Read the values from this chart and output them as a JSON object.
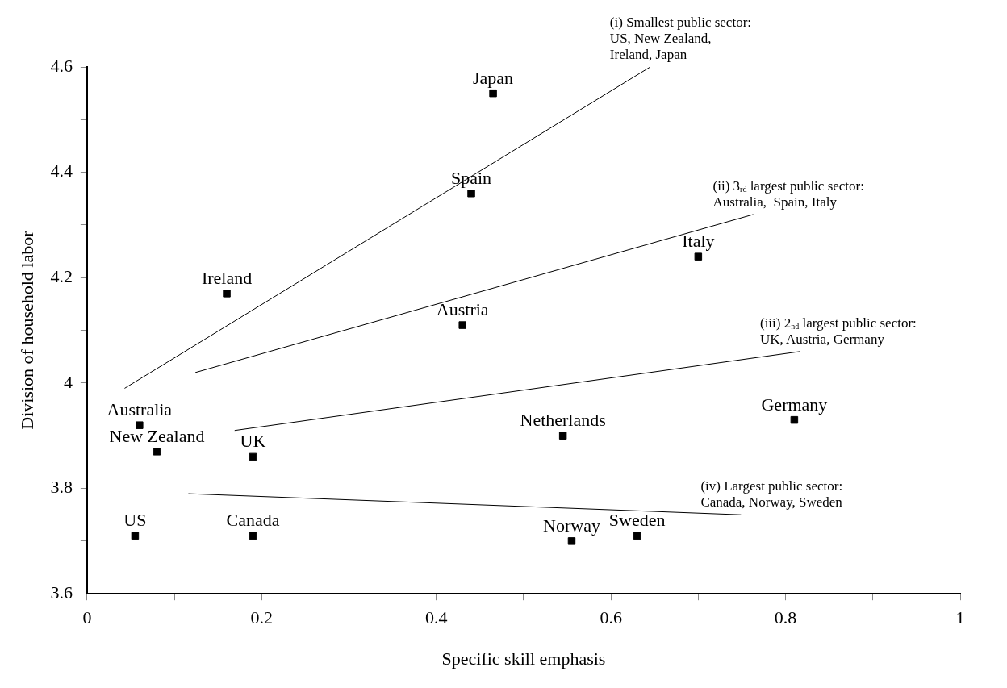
{
  "chart_data": {
    "type": "scatter",
    "xlabel": "Specific skill emphasis",
    "ylabel": "Division of household labor",
    "xlim": [
      0,
      1
    ],
    "ylim": [
      3.6,
      4.6
    ],
    "xticks": [
      0,
      {
        "value": 0.1,
        "label": null
      },
      0.2,
      {
        "value": 0.3,
        "label": null
      },
      0.4,
      {
        "value": 0.5,
        "label": null
      },
      0.6,
      {
        "value": 0.7,
        "label": null
      },
      0.8,
      {
        "value": 0.9,
        "label": null
      },
      1
    ],
    "yticks": [
      3.6,
      {
        "value": 3.7,
        "label": null
      },
      3.8,
      {
        "value": 3.9,
        "label": null
      },
      4,
      {
        "value": 4.1,
        "label": null
      },
      4.2,
      {
        "value": 4.3,
        "label": null
      },
      4.4,
      {
        "value": 4.5,
        "label": null
      },
      4.6
    ],
    "marker": "square",
    "legend": false,
    "series": [
      {
        "name": "Japan",
        "color": "#000000",
        "x": [
          0.465
        ],
        "values": [
          4.55
        ]
      },
      {
        "name": "Spain",
        "color": "#000000",
        "x": [
          0.44
        ],
        "values": [
          4.36
        ]
      },
      {
        "name": "Italy",
        "color": "#000000",
        "x": [
          0.7
        ],
        "values": [
          4.24
        ]
      },
      {
        "name": "Ireland",
        "color": "#000000",
        "x": [
          0.16
        ],
        "values": [
          4.17
        ]
      },
      {
        "name": "Austria",
        "color": "#000000",
        "x": [
          0.43
        ],
        "values": [
          4.11
        ]
      },
      {
        "name": "Australia",
        "color": "#000000",
        "x": [
          0.06
        ],
        "values": [
          3.92
        ]
      },
      {
        "name": "New Zealand",
        "color": "#000000",
        "x": [
          0.08
        ],
        "values": [
          3.87
        ]
      },
      {
        "name": "UK",
        "color": "#000000",
        "x": [
          0.19
        ],
        "values": [
          3.86
        ]
      },
      {
        "name": "Netherlands",
        "color": "#000000",
        "x": [
          0.545
        ],
        "values": [
          3.9
        ]
      },
      {
        "name": "Germany",
        "color": "#000000",
        "x": [
          0.81
        ],
        "values": [
          3.93
        ]
      },
      {
        "name": "US",
        "color": "#000000",
        "x": [
          0.055
        ],
        "values": [
          3.71
        ]
      },
      {
        "name": "Canada",
        "color": "#000000",
        "x": [
          0.19
        ],
        "values": [
          3.71
        ]
      },
      {
        "name": "Norway",
        "color": "#000000",
        "x": [
          0.555
        ],
        "values": [
          3.7
        ]
      },
      {
        "name": "Sweden",
        "color": "#000000",
        "x": [
          0.63
        ],
        "values": [
          3.71
        ]
      },
      {
        "type": "line",
        "color": "#000000",
        "marker": "none",
        "x": [
          0.043,
          0.645
        ],
        "values": [
          3.99,
          4.6
        ]
      },
      {
        "type": "line",
        "color": "#000000",
        "marker": "none",
        "x": [
          0.124,
          0.763
        ],
        "values": [
          4.02,
          4.32
        ]
      },
      {
        "type": "line",
        "color": "#000000",
        "marker": "none",
        "x": [
          0.169,
          0.817
        ],
        "values": [
          3.91,
          4.06
        ]
      },
      {
        "type": "line",
        "color": "#000000",
        "marker": "none",
        "x": [
          0.116,
          0.749
        ],
        "values": [
          3.79,
          3.75
        ]
      }
    ],
    "annotations": [
      "(i) Smallest public sector:\nUS, New Zealand,\nIreland, Japan",
      "(ii) 3$_{rd}$ largest public sector:\nAustralia,  Spain, Italy",
      "(iii) 2$_{nd}$ largest public sector:\nUK, Austria, Germany",
      "(iv) Largest public sector:\nCanada, Norway, Sweden"
    ]
  }
}
